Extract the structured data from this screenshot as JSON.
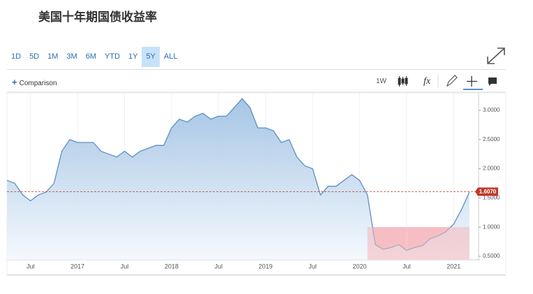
{
  "header": {
    "title": "美国十年期国债收益率"
  },
  "toolbar": {
    "ranges": [
      "1D",
      "5D",
      "1M",
      "3M",
      "6M",
      "YTD",
      "1Y",
      "5Y",
      "ALL"
    ],
    "selected_range": "5Y",
    "comparison": "Comparison",
    "interval": "1W"
  },
  "chart_data": {
    "type": "area",
    "x": [
      "2016-04",
      "2016-05",
      "2016-06",
      "2016-07",
      "2016-08",
      "2016-09",
      "2016-10",
      "2016-11",
      "2016-12",
      "2017-01",
      "2017-02",
      "2017-03",
      "2017-04",
      "2017-05",
      "2017-06",
      "2017-07",
      "2017-08",
      "2017-09",
      "2017-10",
      "2017-11",
      "2017-12",
      "2018-01",
      "2018-02",
      "2018-03",
      "2018-04",
      "2018-05",
      "2018-06",
      "2018-07",
      "2018-08",
      "2018-09",
      "2018-10",
      "2018-11",
      "2018-12",
      "2019-01",
      "2019-02",
      "2019-03",
      "2019-04",
      "2019-05",
      "2019-06",
      "2019-07",
      "2019-08",
      "2019-09",
      "2019-10",
      "2019-11",
      "2019-12",
      "2020-01",
      "2020-02",
      "2020-03",
      "2020-04",
      "2020-05",
      "2020-06",
      "2020-07",
      "2020-08",
      "2020-09",
      "2020-10",
      "2020-11",
      "2020-12",
      "2021-01",
      "2021-02",
      "2021-03"
    ],
    "values": [
      1.8,
      1.75,
      1.55,
      1.45,
      1.55,
      1.6,
      1.75,
      2.3,
      2.5,
      2.45,
      2.45,
      2.45,
      2.3,
      2.25,
      2.2,
      2.3,
      2.2,
      2.3,
      2.35,
      2.4,
      2.4,
      2.7,
      2.85,
      2.8,
      2.9,
      2.95,
      2.85,
      2.9,
      2.9,
      3.05,
      3.2,
      3.05,
      2.7,
      2.7,
      2.65,
      2.45,
      2.5,
      2.2,
      2.05,
      2.0,
      1.55,
      1.7,
      1.7,
      1.8,
      1.9,
      1.8,
      1.55,
      0.7,
      0.62,
      0.65,
      0.7,
      0.6,
      0.65,
      0.68,
      0.8,
      0.85,
      0.92,
      1.05,
      1.3,
      1.6
    ],
    "color": "#5b8fc5",
    "xlim": [
      "2016-04",
      "2021-04"
    ],
    "xticks": [
      {
        "value": "2016-07",
        "label": "Jul"
      },
      {
        "value": "2017-01",
        "label": "2017"
      },
      {
        "value": "2017-07",
        "label": "Jul"
      },
      {
        "value": "2018-01",
        "label": "2018"
      },
      {
        "value": "2018-07",
        "label": "Jul"
      },
      {
        "value": "2019-01",
        "label": "2019"
      },
      {
        "value": "2019-07",
        "label": "Jul"
      },
      {
        "value": "2020-01",
        "label": "2020"
      },
      {
        "value": "2020-07",
        "label": "Jul"
      },
      {
        "value": "2021-01",
        "label": "2021"
      }
    ],
    "ylim": [
      0.44,
      3.3
    ],
    "yticks": [
      {
        "value": 0.5,
        "label": "0.5000"
      },
      {
        "value": 1,
        "label": "1.0000"
      },
      {
        "value": 1.5,
        "label": "1.5000"
      },
      {
        "value": 2,
        "label": "2.0000"
      },
      {
        "value": 2.5,
        "label": "2.5000"
      },
      {
        "value": 3,
        "label": "3.0000"
      }
    ],
    "grid": true,
    "last_value": {
      "value": 1.607,
      "label": "1.6070",
      "color": "#c0392b"
    },
    "highlight_region": {
      "xlim": [
        "2020-02",
        "2021-03"
      ],
      "ylim": [
        0.44,
        1.0
      ],
      "color": "#f4b9be"
    }
  }
}
